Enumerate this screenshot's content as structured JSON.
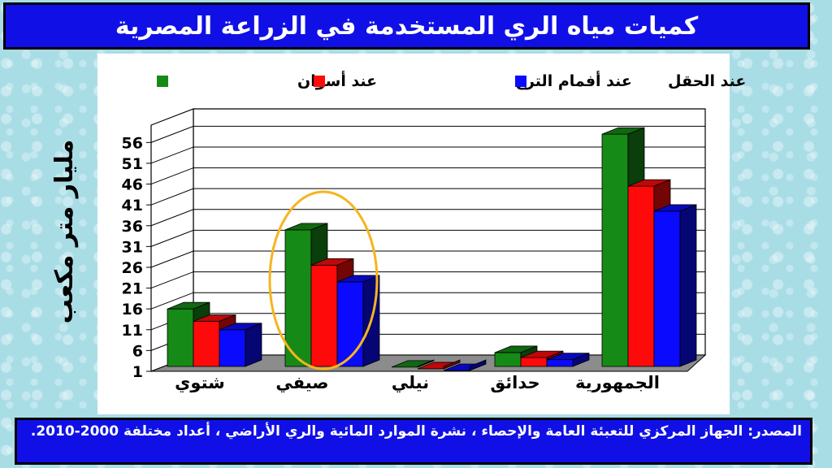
{
  "title": "كميات مياه الري المستخدمة في الزراعة المصرية",
  "source": "المصدر: الجهاز المركزي للتعبئة العامة والإحصاء ، نشرة الموارد المائية والري الأراضي ، أعداد مختلفة 2000-2010.",
  "colors": {
    "title_bg": "#1010e6",
    "series_green": "#168a16",
    "series_red": "#ff0a0a",
    "series_blue": "#0a0aff",
    "highlight_ellipse": "#f5b51e"
  },
  "chart_data": {
    "type": "bar",
    "ylabel": "مليار متر مكعب",
    "xlabel": "",
    "categories": [
      "شتوي",
      "صيفي",
      "نيلي",
      "حدائق",
      "الجمهورية"
    ],
    "series": [
      {
        "name": "عند أسوان",
        "color": "#168a16",
        "values": [
          16,
          35,
          2,
          5.5,
          58
        ]
      },
      {
        "name": "عند أفمام الترع",
        "color": "#ff0a0a",
        "values": [
          13,
          26.5,
          1.6,
          4.3,
          45.5
        ]
      },
      {
        "name": "عند الحقل",
        "color": "#0a0aff",
        "values": [
          11,
          22.5,
          1.2,
          3.8,
          39.5
        ]
      }
    ],
    "yticks": [
      1,
      6,
      11,
      16,
      21,
      26,
      31,
      36,
      41,
      46,
      51,
      56
    ],
    "ylim": [
      1,
      59
    ],
    "grid": true,
    "legend_position": "top",
    "highlighted_category": "صيفي"
  }
}
